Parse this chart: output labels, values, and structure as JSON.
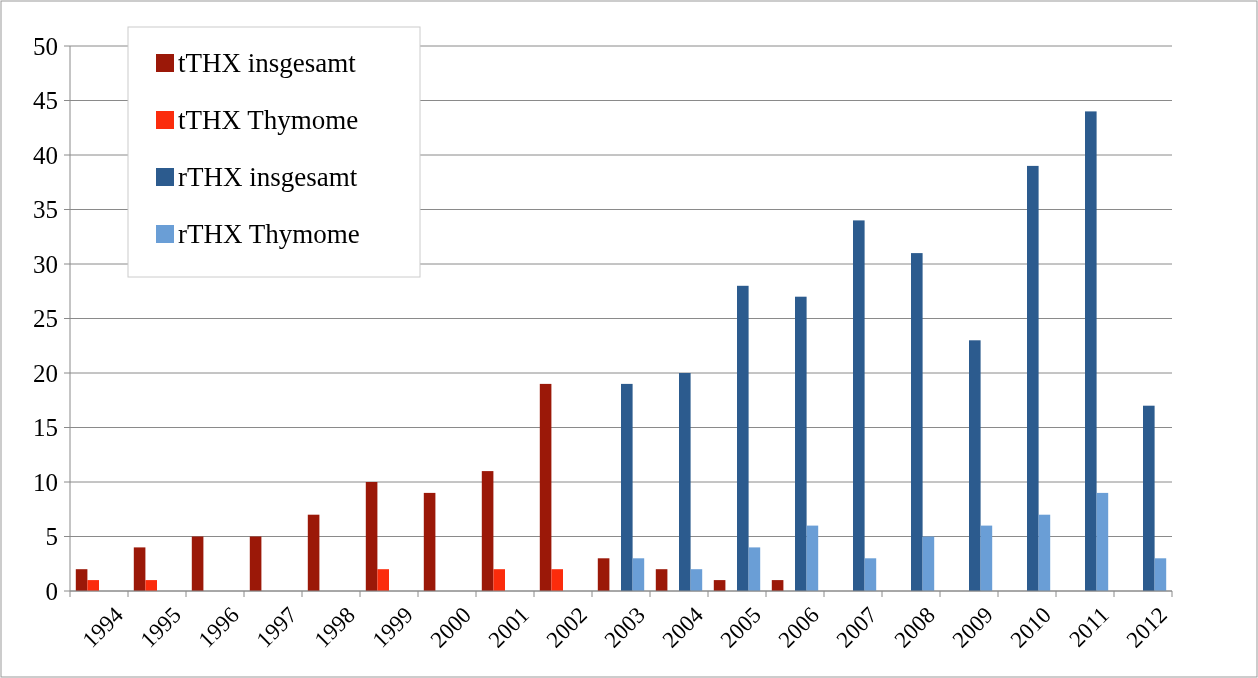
{
  "chart_data": {
    "type": "bar",
    "categories": [
      "1994",
      "1995",
      "1996",
      "1997",
      "1998",
      "1999",
      "2000",
      "2001",
      "2002",
      "2003",
      "2004",
      "2005",
      "2006",
      "2007",
      "2008",
      "2009",
      "2010",
      "2011",
      "2012"
    ],
    "series": [
      {
        "name": "tTHX insgesamt",
        "color": "#9b1808",
        "values": [
          2,
          4,
          5,
          5,
          7,
          10,
          9,
          11,
          19,
          3,
          2,
          1,
          1,
          0,
          0,
          0,
          0,
          0,
          0
        ]
      },
      {
        "name": "tTHX Thymome",
        "color": "#fb2c0c",
        "values": [
          1,
          1,
          0,
          0,
          0,
          2,
          0,
          2,
          2,
          0,
          0,
          0,
          0,
          0,
          0,
          0,
          0,
          0,
          0
        ]
      },
      {
        "name": "rTHX insgesamt",
        "color": "#2c5b8e",
        "values": [
          0,
          0,
          0,
          0,
          0,
          0,
          0,
          0,
          0,
          19,
          20,
          28,
          27,
          34,
          31,
          23,
          39,
          44,
          17
        ]
      },
      {
        "name": "rTHX Thymome",
        "color": "#6a9ed6",
        "values": [
          0,
          0,
          0,
          0,
          0,
          0,
          0,
          0,
          0,
          3,
          2,
          4,
          6,
          3,
          5,
          6,
          7,
          9,
          3
        ]
      }
    ],
    "ylim": [
      0,
      50
    ],
    "yticks": [
      0,
      5,
      10,
      15,
      20,
      25,
      30,
      35,
      40,
      45,
      50
    ],
    "grid": "y",
    "legend": "top left"
  }
}
